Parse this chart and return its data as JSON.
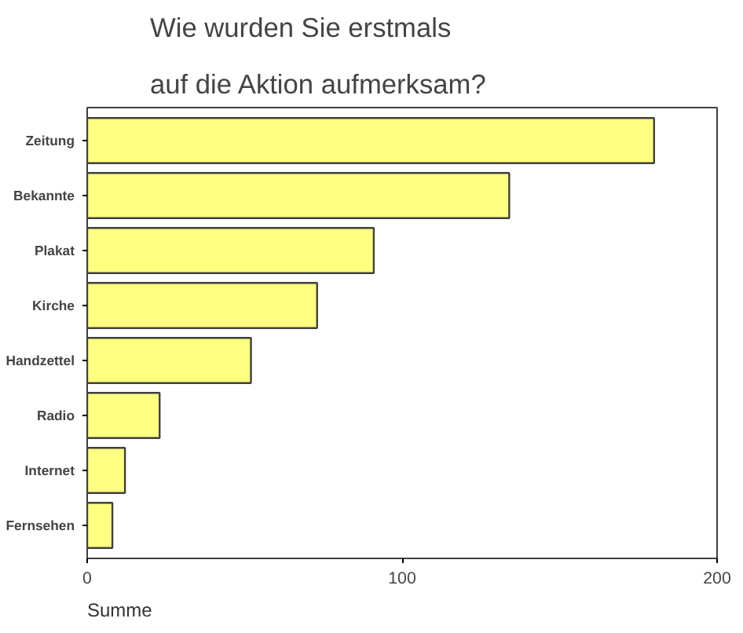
{
  "chart_data": {
    "type": "bar",
    "orientation": "horizontal",
    "title": "Wie wurden Sie erstmals auf die Aktion aufmerksam?",
    "xlabel": "Summe",
    "categories": [
      "Zeitung",
      "Bekannte",
      "Plakat",
      "Kirche",
      "Handzettel",
      "Radio",
      "Internet",
      "Fernsehen"
    ],
    "values": [
      180,
      134,
      91,
      73,
      52,
      23,
      12,
      8
    ],
    "color": "#ffff80",
    "xlim": [
      0,
      200
    ],
    "xticks": [
      0,
      100,
      200
    ],
    "grid": false
  }
}
